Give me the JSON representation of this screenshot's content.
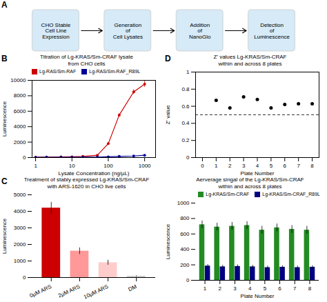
{
  "chart_data": [
    {
      "type": "flow",
      "annotations": [
        "A"
      ],
      "color": "#D6EAF8",
      "categories": [
        "CHO Stable\nCell Line\nExpression",
        "Generation\nof\nCell Lysates",
        "Addition\nof\nNanoGlo",
        "Detection\nof\nLuminescence"
      ]
    },
    {
      "type": "line",
      "annotations": [
        "B"
      ],
      "title": "Titration of Lg-KRAS/Sm-CRAF lysate\nfrom CHO cells",
      "xlabel": "Lysate Concentration (ng/µL)",
      "ylabel": "Luminescence",
      "x": [
        1,
        2,
        5,
        10,
        20,
        50,
        100,
        200,
        500,
        1000
      ],
      "series": [
        {
          "name": "Lg-RAS/Sm-RAF",
          "color": "#CC0000",
          "marker": "circle",
          "values": [
            50,
            60,
            80,
            100,
            150,
            300,
            1800,
            5500,
            8500,
            9500
          ],
          "errors": [
            20,
            20,
            20,
            20,
            30,
            50,
            100,
            200,
            300,
            400
          ]
        },
        {
          "name": "Lg-RAS/Sm-RAF_R89L",
          "color": "#000099",
          "marker": "circle",
          "values": [
            30,
            35,
            40,
            45,
            50,
            60,
            100,
            150,
            200,
            300
          ],
          "errors": [
            10,
            10,
            10,
            10,
            10,
            10,
            20,
            20,
            30,
            40
          ]
        }
      ],
      "log": "x",
      "xlim": [
        0.8,
        2000
      ],
      "xticks": [
        1,
        10,
        100,
        1000
      ],
      "ylim": [
        0,
        10000
      ],
      "yticks": [
        0,
        2000,
        4000,
        6000,
        8000,
        10000
      ],
      "legend": "upper left"
    },
    {
      "type": "scatter",
      "annotations": [
        "D"
      ],
      "title": "Z' values Lg-KRAS/Sm-CRAF\nwithin and across 8 plates",
      "xlabel": "Plate Number",
      "ylabel": "Z' value",
      "x": [
        1,
        2,
        3,
        4,
        5,
        6,
        7,
        8
      ],
      "values": [
        0.67,
        0.58,
        0.71,
        0.68,
        0.58,
        0.62,
        0.63,
        0.63
      ],
      "color": "black",
      "hline": 0.5,
      "xlim": [
        -0.5,
        8.5
      ],
      "xticks": [
        0,
        1,
        2,
        3,
        4,
        5,
        6,
        7,
        8
      ],
      "ylim": [
        0.0,
        1.0
      ],
      "yticks": [
        0.0,
        0.2,
        0.4,
        0.6,
        0.8,
        1.0
      ]
    },
    {
      "type": "bar",
      "annotations": [
        "C"
      ],
      "title": "Treatment of stably expressed Lg-KRAS/Sm-CRAF\nwith ARS-1620 in CHO live cells",
      "ylabel": "Luminescence",
      "categories": [
        "0µM ARS",
        "2µM ARS",
        "10µM ARS",
        "DM"
      ],
      "values": [
        4200,
        1600,
        900,
        80
      ],
      "errors": [
        350,
        200,
        150,
        30
      ],
      "colors": [
        "#CC0000",
        "#FF9999",
        "#FFCCCC",
        "#CCCCCC"
      ],
      "ylim": [
        0,
        5000
      ],
      "yticks": [
        0,
        1000,
        2000,
        3000,
        4000,
        5000
      ]
    },
    {
      "type": "bar",
      "title": "Aerverage singal of the Lg-KRAS/Sm-CRAF\nwithin and across 8 plates",
      "xlabel": "Plate Number",
      "ylabel": "Luminescence",
      "x": [
        1,
        2,
        3,
        4,
        5,
        6,
        7,
        8
      ],
      "series": [
        {
          "name": "Lg-KRAS/Sm-CRAF",
          "color": "#228B22",
          "values": [
            720,
            690,
            700,
            710,
            650,
            680,
            660,
            650
          ],
          "errors": [
            50,
            50,
            50,
            50,
            50,
            50,
            50,
            50
          ]
        },
        {
          "name": "Lg-KRAS/Sm-CRAF_R89L",
          "color": "#000080",
          "values": [
            185,
            175,
            180,
            175,
            165,
            170,
            165,
            170
          ],
          "errors": [
            20,
            20,
            20,
            20,
            20,
            20,
            20,
            20
          ]
        }
      ],
      "ylim": [
        0,
        1000
      ],
      "yticks": [
        0,
        200,
        400,
        600,
        800,
        1000
      ],
      "legend": "upper right"
    }
  ]
}
